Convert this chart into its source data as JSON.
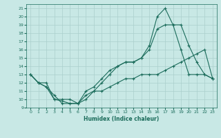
{
  "xlabel": "Humidex (Indice chaleur)",
  "bg_color": "#c8e8e5",
  "line_color": "#1a6b5a",
  "grid_color": "#aacfcc",
  "xlim": [
    -0.5,
    23.5
  ],
  "ylim": [
    9,
    21.5
  ],
  "yticks": [
    9,
    10,
    11,
    12,
    13,
    14,
    15,
    16,
    17,
    18,
    19,
    20,
    21
  ],
  "xticks": [
    0,
    1,
    2,
    3,
    4,
    5,
    6,
    7,
    8,
    9,
    10,
    11,
    12,
    13,
    14,
    15,
    16,
    17,
    18,
    19,
    20,
    21,
    22,
    23
  ],
  "line1_x": [
    0,
    1,
    2,
    3,
    4,
    5,
    6,
    7,
    8,
    9,
    10,
    11,
    12,
    13,
    14,
    15,
    16,
    17,
    18,
    19,
    20,
    21,
    22,
    23
  ],
  "line1_y": [
    13,
    12,
    11.5,
    10.5,
    9.5,
    9.5,
    9.5,
    11,
    11.5,
    12.5,
    13.5,
    14,
    14.5,
    14.5,
    15,
    16.5,
    20,
    21,
    19,
    19,
    16.5,
    14.5,
    13,
    12.5
  ],
  "line2_x": [
    0,
    1,
    2,
    3,
    4,
    5,
    6,
    7,
    8,
    9,
    10,
    11,
    12,
    13,
    14,
    15,
    16,
    17,
    18,
    19,
    20,
    21,
    22,
    23
  ],
  "line2_y": [
    13,
    12,
    11.5,
    10,
    10,
    10,
    9.5,
    10.5,
    11,
    12,
    13,
    14,
    14.5,
    14.5,
    15,
    16,
    18.5,
    19,
    19,
    16,
    13,
    13,
    13,
    12.5
  ],
  "line3_x": [
    0,
    1,
    2,
    3,
    4,
    5,
    6,
    7,
    8,
    9,
    10,
    11,
    12,
    13,
    14,
    15,
    16,
    17,
    18,
    19,
    20,
    21,
    22,
    23
  ],
  "line3_y": [
    13,
    12,
    12,
    10,
    9.8,
    9.5,
    9.5,
    10,
    11,
    11,
    11.5,
    12,
    12.5,
    12.5,
    13,
    13,
    13,
    13.5,
    14,
    14.5,
    15,
    15.5,
    16,
    12.5
  ]
}
